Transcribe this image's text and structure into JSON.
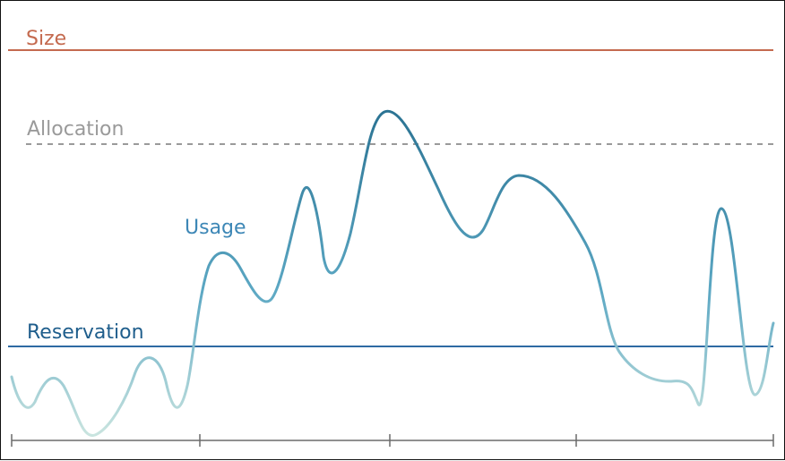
{
  "diagram": {
    "labels": {
      "size": "Size",
      "allocation": "Allocation",
      "usage": "Usage",
      "reservation": "Reservation"
    },
    "colors": {
      "size": "#c46a4f",
      "allocation": "#9a9a9a",
      "usage_light": "#bcdcdb",
      "usage_mid": "#5ba7c3",
      "usage_dark": "#2b7393",
      "reservation": "#2e6aa3",
      "axis": "#6b6b6b",
      "frame": "#111111"
    },
    "levels": {
      "size": 1.0,
      "allocation": 0.78,
      "reservation": 0.25
    },
    "usage_curve_samples": [
      0.14,
      0.09,
      0.15,
      0.07,
      0.01,
      0.05,
      0.18,
      0.09,
      0.41,
      0.35,
      0.29,
      0.57,
      0.43,
      0.78,
      0.81,
      0.52,
      0.62,
      0.7,
      0.58,
      0.39,
      0.09,
      0.06,
      0.07,
      0.04,
      0.57,
      0.08,
      0.26
    ],
    "x_ticks_count": 5
  }
}
